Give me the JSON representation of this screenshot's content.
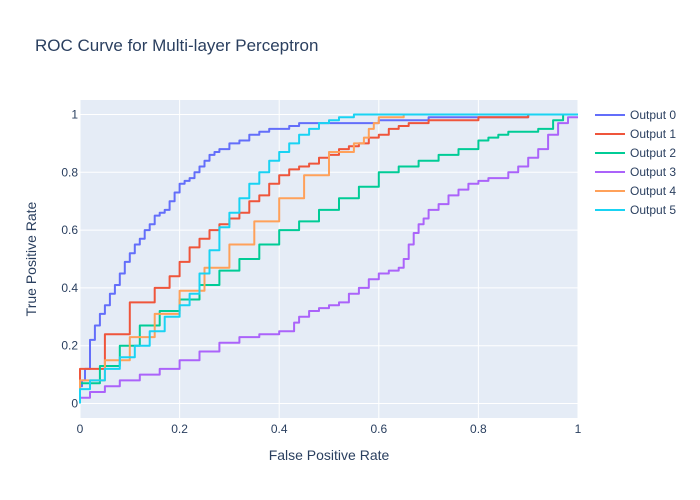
{
  "chart_data": {
    "type": "line",
    "title": "ROC Curve for Multi-layer Perceptron",
    "xlabel": "False Positive Rate",
    "ylabel": "True Positive Rate",
    "xlim": [
      0,
      1
    ],
    "ylim": [
      -0.05,
      1.05
    ],
    "x_ticks": [
      0,
      0.2,
      0.4,
      0.6,
      0.8,
      1
    ],
    "x_tick_labels": [
      "0",
      "0.2",
      "0.4",
      "0.6",
      "0.8",
      "1"
    ],
    "y_ticks": [
      0,
      0.2,
      0.4,
      0.6,
      0.8,
      1
    ],
    "y_tick_labels": [
      "0",
      "0.2",
      "0.4",
      "0.6",
      "0.8",
      "1"
    ],
    "grid": true,
    "legend_position": "top-right",
    "background_color": "#e5ecf6",
    "series": [
      {
        "name": "Output 0",
        "color": "#636efa",
        "x": [
          0,
          0.004,
          0.01,
          0.02,
          0.03,
          0.04,
          0.05,
          0.06,
          0.07,
          0.08,
          0.09,
          0.1,
          0.11,
          0.12,
          0.13,
          0.14,
          0.15,
          0.16,
          0.17,
          0.18,
          0.19,
          0.2,
          0.21,
          0.22,
          0.23,
          0.24,
          0.25,
          0.26,
          0.27,
          0.28,
          0.3,
          0.32,
          0.34,
          0.36,
          0.38,
          0.4,
          0.42,
          0.44,
          0.46,
          0.48,
          0.5,
          0.55,
          0.6,
          0.65,
          0.7,
          0.75,
          0.8,
          0.85,
          0.9,
          0.95,
          1
        ],
        "y": [
          0,
          0.06,
          0.08,
          0.12,
          0.22,
          0.27,
          0.31,
          0.34,
          0.38,
          0.41,
          0.45,
          0.49,
          0.52,
          0.55,
          0.57,
          0.6,
          0.62,
          0.65,
          0.66,
          0.67,
          0.7,
          0.73,
          0.76,
          0.77,
          0.78,
          0.8,
          0.82,
          0.84,
          0.86,
          0.87,
          0.88,
          0.9,
          0.91,
          0.93,
          0.94,
          0.95,
          0.95,
          0.96,
          0.97,
          0.97,
          0.97,
          0.97,
          0.97,
          0.98,
          0.98,
          0.99,
          0.99,
          0.99,
          0.99,
          1,
          1
        ]
      },
      {
        "name": "Output 1",
        "color": "#ef553b",
        "x": [
          0,
          0.05,
          0.1,
          0.15,
          0.18,
          0.2,
          0.22,
          0.24,
          0.26,
          0.28,
          0.3,
          0.32,
          0.34,
          0.36,
          0.38,
          0.4,
          0.42,
          0.44,
          0.46,
          0.48,
          0.5,
          0.52,
          0.54,
          0.56,
          0.58,
          0.6,
          0.62,
          0.64,
          0.66,
          0.7,
          0.75,
          0.8,
          0.85,
          0.9,
          0.95,
          1
        ],
        "y": [
          0,
          0.12,
          0.24,
          0.35,
          0.4,
          0.44,
          0.49,
          0.54,
          0.57,
          0.6,
          0.62,
          0.64,
          0.66,
          0.7,
          0.72,
          0.76,
          0.79,
          0.81,
          0.82,
          0.83,
          0.85,
          0.86,
          0.88,
          0.89,
          0.9,
          0.92,
          0.93,
          0.95,
          0.96,
          0.97,
          0.98,
          0.98,
          0.99,
          0.99,
          1,
          1
        ]
      },
      {
        "name": "Output 2",
        "color": "#00cc96",
        "x": [
          0,
          0.04,
          0.08,
          0.12,
          0.16,
          0.2,
          0.24,
          0.28,
          0.32,
          0.36,
          0.4,
          0.44,
          0.48,
          0.52,
          0.56,
          0.6,
          0.64,
          0.68,
          0.72,
          0.76,
          0.8,
          0.82,
          0.84,
          0.86,
          0.88,
          0.9,
          0.92,
          0.95,
          0.97,
          1
        ],
        "y": [
          0,
          0.07,
          0.13,
          0.2,
          0.27,
          0.32,
          0.36,
          0.41,
          0.46,
          0.5,
          0.55,
          0.6,
          0.63,
          0.67,
          0.71,
          0.75,
          0.8,
          0.82,
          0.84,
          0.86,
          0.88,
          0.91,
          0.92,
          0.93,
          0.94,
          0.94,
          0.94,
          0.95,
          0.98,
          1
        ]
      },
      {
        "name": "Output 3",
        "color": "#ab63fa",
        "x": [
          0,
          0.02,
          0.05,
          0.08,
          0.12,
          0.16,
          0.2,
          0.24,
          0.28,
          0.32,
          0.36,
          0.4,
          0.43,
          0.44,
          0.46,
          0.48,
          0.5,
          0.52,
          0.54,
          0.56,
          0.58,
          0.6,
          0.62,
          0.64,
          0.65,
          0.66,
          0.67,
          0.68,
          0.69,
          0.7,
          0.72,
          0.74,
          0.76,
          0.78,
          0.8,
          0.82,
          0.84,
          0.86,
          0.88,
          0.9,
          0.92,
          0.94,
          0.96,
          0.98,
          1
        ],
        "y": [
          0,
          0.02,
          0.04,
          0.06,
          0.08,
          0.1,
          0.12,
          0.15,
          0.18,
          0.21,
          0.23,
          0.24,
          0.25,
          0.28,
          0.3,
          0.32,
          0.33,
          0.34,
          0.35,
          0.38,
          0.4,
          0.43,
          0.45,
          0.46,
          0.47,
          0.5,
          0.55,
          0.59,
          0.62,
          0.64,
          0.67,
          0.69,
          0.72,
          0.74,
          0.76,
          0.77,
          0.78,
          0.78,
          0.8,
          0.82,
          0.85,
          0.88,
          0.93,
          0.97,
          0.99
        ]
      },
      {
        "name": "Output 4",
        "color": "#ffa15a",
        "x": [
          0,
          0.05,
          0.1,
          0.15,
          0.2,
          0.25,
          0.3,
          0.35,
          0.4,
          0.45,
          0.5,
          0.55,
          0.57,
          0.58,
          0.59,
          0.6,
          0.62,
          0.65,
          0.7,
          0.8,
          0.9,
          1
        ],
        "y": [
          0,
          0.08,
          0.15,
          0.23,
          0.31,
          0.39,
          0.47,
          0.55,
          0.63,
          0.71,
          0.79,
          0.87,
          0.9,
          0.92,
          0.95,
          0.97,
          0.99,
          0.99,
          1,
          1,
          1,
          1
        ],
        "x_note": null
      },
      {
        "name": "Output 5",
        "color": "#19d3f3",
        "x": [
          0,
          0.02,
          0.05,
          0.08,
          0.11,
          0.14,
          0.17,
          0.2,
          0.22,
          0.24,
          0.26,
          0.28,
          0.3,
          0.32,
          0.34,
          0.36,
          0.38,
          0.4,
          0.42,
          0.44,
          0.46,
          0.48,
          0.5,
          0.52,
          0.55,
          0.6,
          0.7,
          0.8,
          0.9,
          1
        ],
        "y": [
          0,
          0.05,
          0.08,
          0.12,
          0.16,
          0.2,
          0.25,
          0.3,
          0.34,
          0.38,
          0.45,
          0.53,
          0.61,
          0.66,
          0.71,
          0.76,
          0.8,
          0.84,
          0.87,
          0.9,
          0.93,
          0.95,
          0.97,
          0.98,
          0.99,
          1,
          1,
          1,
          1,
          1
        ]
      }
    ]
  }
}
